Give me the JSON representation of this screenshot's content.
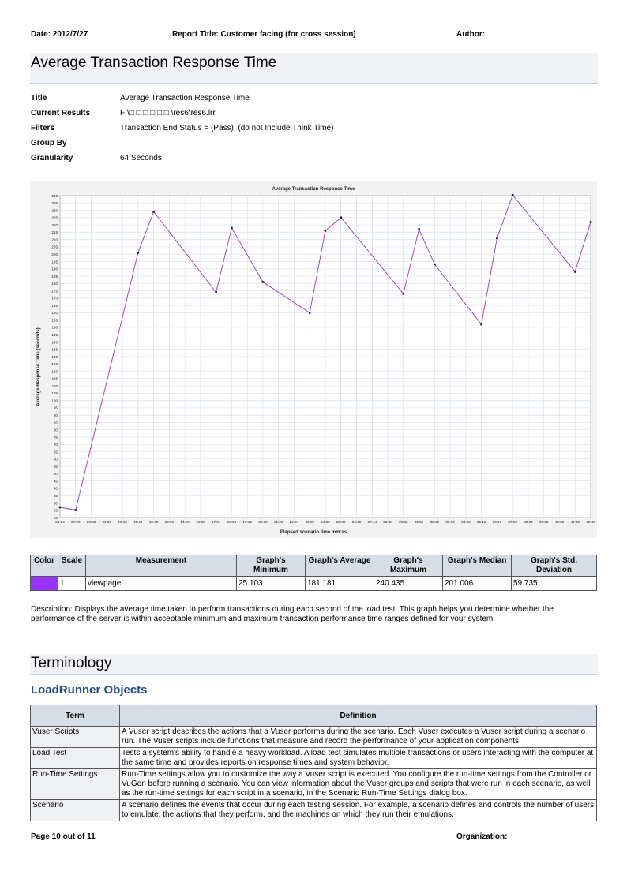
{
  "header": {
    "date": "Date: 2012/7/27",
    "report_title": "Report Title: Customer facing (for cross session)",
    "author": "Author:"
  },
  "section_title": "Average Transaction Response Time",
  "meta": {
    "title_key": "Title",
    "title_val": "Average Transaction Response Time",
    "results_key": "Current Results",
    "results_val": "F:\\□ □ □ □ □ □ \\res6\\res6.lrr",
    "filters_key": "Filters",
    "filters_val": "Transaction End Status = (Pass), (do not Include Think Time)",
    "groupby_key": "Group By",
    "groupby_val": "",
    "granularity_key": "Granularity",
    "granularity_val": "64 Seconds"
  },
  "chart_data": {
    "type": "line",
    "title": "Average Transaction Response Time",
    "xlabel": "Elapsed scenario time mm:ss",
    "ylabel": "Average Response Time (seconds)",
    "x_ticks": [
      "06:24",
      "07:28",
      "08:32",
      "09:36",
      "10:40",
      "11:44",
      "12:48",
      "13:52",
      "14:56",
      "16:00",
      "17:04",
      "18:08",
      "19:12",
      "20:16",
      "21:20",
      "22:24",
      "23:28",
      "24:32",
      "25:36",
      "26:40",
      "27:44",
      "28:48",
      "29:52",
      "30:56",
      "32:00",
      "33:04",
      "34:08",
      "35:12",
      "36:16",
      "37:20",
      "38:24",
      "39:28",
      "40:32",
      "41:36",
      "42:40"
    ],
    "ylim": [
      20,
      240
    ],
    "ytick_step": 5,
    "grid": true,
    "series": [
      {
        "color": "#9933cc",
        "x": [
          "06:24",
          "07:28",
          "11:44",
          "12:48",
          "17:04",
          "18:08",
          "20:16",
          "23:28",
          "24:32",
          "25:36",
          "29:52",
          "30:56",
          "32:00",
          "35:12",
          "36:16",
          "37:20",
          "41:36",
          "42:40"
        ],
        "y": [
          27,
          25.1,
          201,
          229,
          174,
          218,
          181,
          160,
          216,
          225,
          173,
          217,
          193,
          152,
          211,
          240.4,
          188,
          222
        ]
      }
    ]
  },
  "legend_table": {
    "headers": [
      "Color",
      "Scale",
      "Measurement",
      "Graph's Minimum",
      "Graph's Average",
      "Graph's Maximum",
      "Graph's Median",
      "Graph's Std. Deviation"
    ],
    "rows": [
      {
        "color": "#9933ff",
        "scale": "1",
        "measurement": "viewpage",
        "min": "25.103",
        "avg": "181.181",
        "max": "240.435",
        "median": "201.006",
        "std": "59.735"
      }
    ]
  },
  "description": "Description: Displays the average time taken to perform transactions during each second of the load test. This graph helps you determine whether the performance of the server is within acceptable minimum and maximum transaction performance time ranges defined for your system.",
  "terminology_title": "Terminology",
  "objects_title": "LoadRunner Objects",
  "terms": {
    "headers": [
      "Term",
      "Definition"
    ],
    "rows": [
      {
        "term": "Vuser Scripts",
        "def": "A Vuser script describes the actions that a Vuser performs during the scenario. Each Vuser executes a Vuser script during a scenario run. The Vuser scripts include functions that measure and record the performance of your application components."
      },
      {
        "term": "Load Test",
        "def": "Tests a system's ability to handle a heavy workload. A load test simulates multiple transactions or users interacting with the computer at the same time and provides reports on response times and system behavior."
      },
      {
        "term": "Run-Time Settings",
        "def": "Run-Time settings allow you to customize the way a Vuser script is executed. You configure the run-time settings from the Controller or VuGen before running a scenario. You can view information about the Vuser groups and scripts that were run in each scenario, as well as the run-time settings for each script in a scenario, in the Scenario Run-Time Settings dialog box."
      },
      {
        "term": "Scenario",
        "def": "A scenario defines the events that occur during each testing session. For example, a scenario defines and controls the number of users to emulate, the actions that they perform, and the machines on which they run their emulations."
      }
    ]
  },
  "footer": {
    "page": "Page 10 out of  11",
    "organization": "Organization:"
  }
}
